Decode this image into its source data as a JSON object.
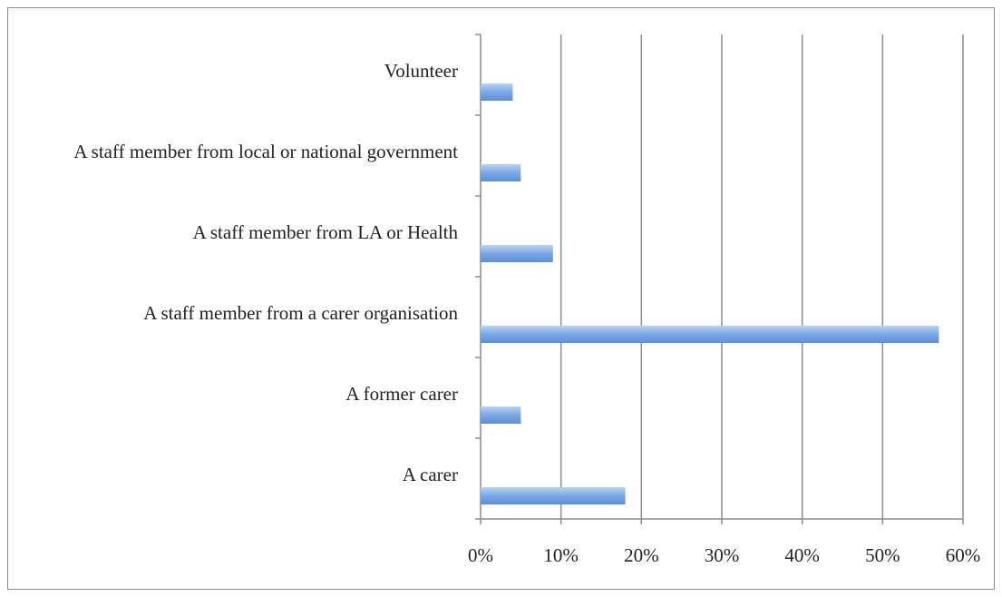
{
  "chart_data": {
    "type": "bar",
    "orientation": "horizontal",
    "categories": [
      "Volunteer",
      "A staff member from local or national government",
      "A staff member from LA or Health",
      "A staff member from a carer organisation",
      "A former carer",
      "A carer"
    ],
    "values": [
      4,
      5,
      9,
      57,
      5,
      18
    ],
    "color": "#7aa8e6",
    "xlim": [
      0,
      60
    ],
    "xticks": [
      {
        "value": 0,
        "label": "0%"
      },
      {
        "value": 10,
        "label": "10%"
      },
      {
        "value": 20,
        "label": "20%"
      },
      {
        "value": 30,
        "label": "30%"
      },
      {
        "value": 40,
        "label": "40%"
      },
      {
        "value": 50,
        "label": "50%"
      },
      {
        "value": 60,
        "label": "60%"
      }
    ],
    "grid": true
  }
}
